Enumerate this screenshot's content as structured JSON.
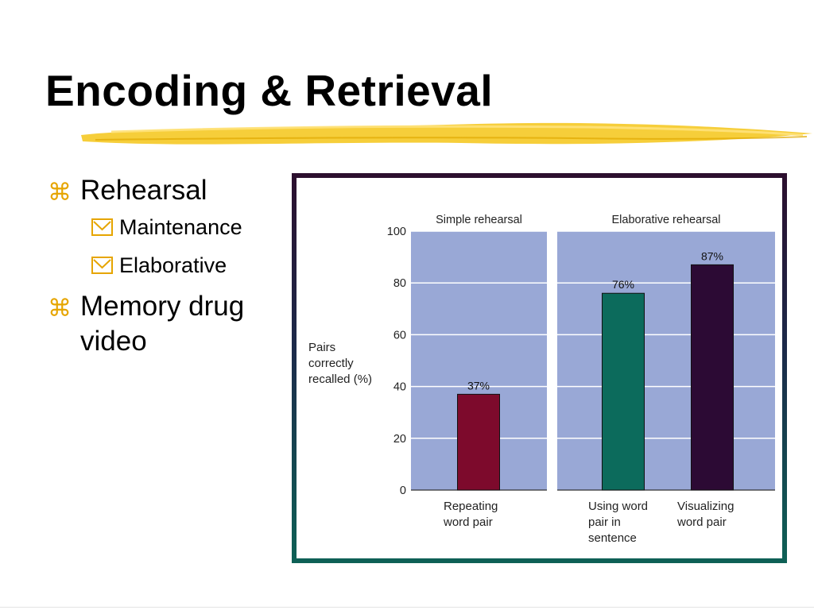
{
  "slide": {
    "title": "Encoding & Retrieval",
    "accent_color": "#f5c518"
  },
  "bullets": {
    "rehearsal": "Rehearsal",
    "maintenance": "Maintenance",
    "elaborative": "Elaborative",
    "memory_drug_video_line1": "Memory drug",
    "memory_drug_video_line2": "video"
  },
  "chart_data": {
    "type": "bar",
    "ylabel": [
      "Pairs",
      "correctly",
      "recalled (%)"
    ],
    "ylim": [
      0,
      100
    ],
    "yticks": [
      0,
      20,
      40,
      60,
      80,
      100
    ],
    "grid": true,
    "plot_background": "#99a8d6",
    "panels": [
      {
        "title": "Simple rehearsal",
        "bars": [
          {
            "category": [
              "Repeating",
              "word pair"
            ],
            "value": 37,
            "label": "37%",
            "color": "#7d0a2c"
          }
        ]
      },
      {
        "title": "Elaborative rehearsal",
        "bars": [
          {
            "category": [
              "Using word",
              "pair in",
              "sentence"
            ],
            "value": 76,
            "label": "76%",
            "color": "#0c6b5c"
          },
          {
            "category": [
              "Visualizing",
              "word pair"
            ],
            "value": 87,
            "label": "87%",
            "color": "#2c0a34"
          }
        ]
      }
    ]
  }
}
